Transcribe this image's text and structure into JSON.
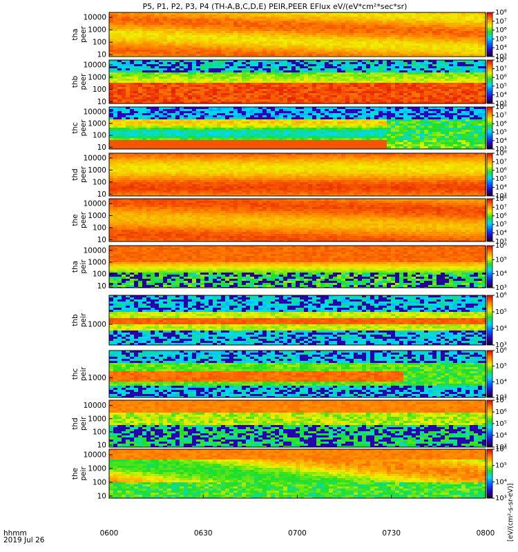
{
  "title": "P5, P1, P2, P3, P4 (TH-A,B,C,D,E) PEIR,PEER EFlux eV/(eV*cm²*sec*sr)",
  "xaxis": {
    "row_label": "hhmm",
    "date_label": "2019 Jul 26",
    "ticks": [
      "0600",
      "0630",
      "0700",
      "0730",
      "0800"
    ]
  },
  "colorbar_unit": "[eV/(cm²-s-sr-eV)]",
  "chart_data": [
    {
      "type": "heatmap",
      "probe": "tha",
      "ylabel_top": "tha",
      "ylabel_bottom": "peer",
      "yticks": [
        "10",
        "100",
        "1000",
        "10000"
      ],
      "ylim": [
        7,
        25000
      ],
      "y_scale": "log",
      "cb_ticks": [
        "10³",
        "10⁴",
        "10⁵",
        "10⁶",
        "10⁷",
        "10⁸"
      ],
      "description": "high flux across energies"
    },
    {
      "type": "heatmap",
      "probe": "thb",
      "ylabel_top": "thb",
      "ylabel_bottom": "peer",
      "yticks": [
        "10",
        "100",
        "1000",
        "10000"
      ],
      "ylim": [
        7,
        25000
      ],
      "y_scale": "log",
      "cb_ticks": [
        "10³",
        "10⁴",
        "10⁵",
        "10⁶",
        "10⁷",
        "10⁸"
      ]
    },
    {
      "type": "heatmap",
      "probe": "thc",
      "ylabel_top": "thc",
      "ylabel_bottom": "peer",
      "yticks": [
        "10",
        "100",
        "1000",
        "10000"
      ],
      "ylim": [
        7,
        25000
      ],
      "y_scale": "log",
      "cb_ticks": [
        "10³",
        "10⁴",
        "10⁵",
        "10⁶",
        "10⁷",
        "10⁸"
      ]
    },
    {
      "type": "heatmap",
      "probe": "thd",
      "ylabel_top": "thd",
      "ylabel_bottom": "peer",
      "yticks": [
        "10",
        "100",
        "1000",
        "10000"
      ],
      "ylim": [
        7,
        25000
      ],
      "y_scale": "log",
      "cb_ticks": [
        "10³",
        "10⁴",
        "10⁵",
        "10⁶",
        "10⁷",
        "10⁸"
      ]
    },
    {
      "type": "heatmap",
      "probe": "the",
      "ylabel_top": "the",
      "ylabel_bottom": "peer",
      "yticks": [
        "10",
        "100",
        "1000",
        "10000"
      ],
      "ylim": [
        7,
        25000
      ],
      "y_scale": "log",
      "cb_ticks": [
        "10³",
        "10⁴",
        "10⁵",
        "10⁶",
        "10⁷",
        "10⁸"
      ]
    },
    {
      "type": "heatmap",
      "probe": "tha",
      "ylabel_top": "tha",
      "ylabel_bottom": "peir",
      "yticks": [
        "10",
        "100",
        "1000",
        "10000"
      ],
      "ylim": [
        7,
        25000
      ],
      "y_scale": "log",
      "cb_ticks": [
        "10³",
        "10⁴",
        "10⁵",
        "10⁶"
      ]
    },
    {
      "type": "heatmap",
      "probe": "thb",
      "ylabel_top": "thb",
      "ylabel_bottom": "peir",
      "yticks": [
        "1000"
      ],
      "ylim": [
        100,
        25000
      ],
      "y_scale": "log",
      "cb_ticks": [
        "10³",
        "10⁴",
        "10⁵",
        "10⁶"
      ]
    },
    {
      "type": "heatmap",
      "probe": "thc",
      "ylabel_top": "thc",
      "ylabel_bottom": "peir",
      "yticks": [
        "1000"
      ],
      "ylim": [
        100,
        25000
      ],
      "y_scale": "log",
      "cb_ticks": [
        "10³",
        "10⁴",
        "10⁵",
        "10⁶"
      ]
    },
    {
      "type": "heatmap",
      "probe": "thd",
      "ylabel_top": "thd",
      "ylabel_bottom": "peir",
      "yticks": [
        "10",
        "100",
        "1000",
        "10000"
      ],
      "ylim": [
        7,
        25000
      ],
      "y_scale": "log",
      "cb_ticks": [
        "10³",
        "10⁴",
        "10⁵",
        "10⁶",
        "10⁷"
      ]
    },
    {
      "type": "heatmap",
      "probe": "the",
      "ylabel_top": "the",
      "ylabel_bottom": "peir",
      "yticks": [
        "10",
        "100",
        "1000",
        "10000"
      ],
      "ylim": [
        7,
        25000
      ],
      "y_scale": "log",
      "cb_ticks": [
        "10³",
        "10⁴",
        "10⁵",
        "10⁶"
      ]
    }
  ]
}
